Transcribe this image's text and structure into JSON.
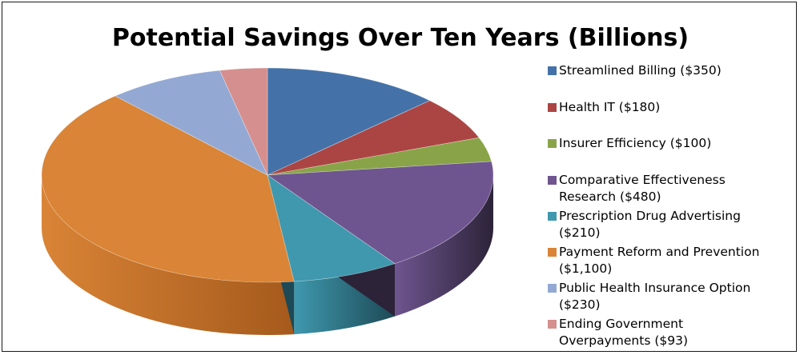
{
  "chart_data": {
    "type": "pie",
    "title": "Potential Savings Over Ten Years (Billions)",
    "legend_position": "right",
    "slices": [
      {
        "label": "Streamlined Billing",
        "value": 350,
        "legend_text": "Streamlined Billing ($350)",
        "legend_lines": [
          "Streamlined Billing ($350)"
        ],
        "color": "#4472a8",
        "dark": "#2a4a72"
      },
      {
        "label": "Health IT",
        "value": 180,
        "legend_text": "Health IT ($180)",
        "legend_lines": [
          "Health IT ($180)"
        ],
        "color": "#ab4543",
        "dark": "#722d2c"
      },
      {
        "label": "Insurer Efficiency",
        "value": 100,
        "legend_text": "Insurer Efficiency ($100)",
        "legend_lines": [
          "Insurer Efficiency ($100)"
        ],
        "color": "#89a448",
        "dark": "#5a6d2e"
      },
      {
        "label": "Comparative Effectiveness Research",
        "value": 480,
        "legend_text": "Comparative Effectiveness Research ($480)",
        "legend_lines": [
          "Comparative Effectiveness",
          "Research ($480)"
        ],
        "color": "#6e558f",
        "dark": "#2c2338"
      },
      {
        "label": "Prescription Drug Advertising",
        "value": 210,
        "legend_text": "Prescription Drug Advertising ($210)",
        "legend_lines": [
          "Prescription Drug Advertising",
          "($210)"
        ],
        "color": "#3f98ae",
        "dark": "#1d4a56"
      },
      {
        "label": "Payment Reform and Prevention",
        "value": 1100,
        "legend_text": "Payment Reform and Prevention ($1,100)",
        "legend_lines": [
          "Payment Reform and Prevention",
          "($1,100)"
        ],
        "color": "#d98436",
        "dark": "#a55a1c"
      },
      {
        "label": "Public Health Insurance Option",
        "value": 230,
        "legend_text": "Public Health Insurance Option ($230)",
        "legend_lines": [
          "Public Health Insurance Option",
          "($230)"
        ],
        "color": "#93a9d4",
        "dark": "#5f739a"
      },
      {
        "label": "Ending Government Overpayments",
        "value": 93,
        "legend_text": "Ending Government Overpayments ($93)",
        "legend_lines": [
          "Ending Government",
          "Overpayments ($93)"
        ],
        "color": "#d58f8e",
        "dark": "#9a5f5e"
      }
    ]
  }
}
